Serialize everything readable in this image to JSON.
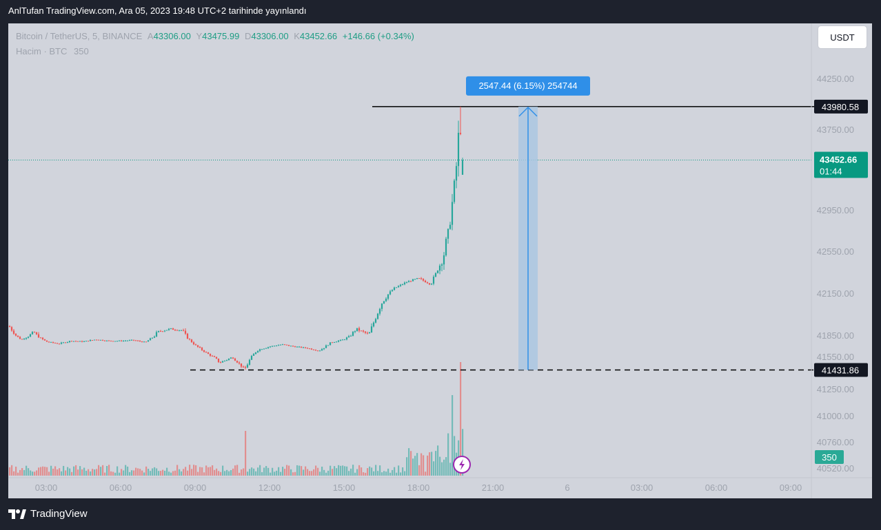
{
  "caption": "AnlTufan TradingView.com, Ara 05, 2023 19:48 UTC+2 tarihinde yayınlandı",
  "legend": {
    "symbol": "Bitcoin / TetherUS, 5, BINANCE",
    "open_label": "A",
    "open": "43306.00",
    "high_label": "Y",
    "high": "43475.99",
    "low_label": "D",
    "low": "43306.00",
    "close_label": "K",
    "close": "43452.66",
    "change": "+146.66 (+0.34%)",
    "volume_label": "Hacim · BTC",
    "volume_value": "350"
  },
  "currency_button": "USDT",
  "footer_brand": "TradingView",
  "colors": {
    "up": "#26a69a",
    "down": "#ef5350",
    "measure": "#2f8fe8",
    "measure_fill": "#a9c6e2",
    "price_badge": "#089981"
  },
  "chart_data": {
    "type": "candlestick",
    "symbol": "Bitcoin / TetherUS",
    "timeframe": "5",
    "exchange": "BINANCE",
    "y_axis": {
      "ticks": [
        44250.0,
        43750.0,
        42950.0,
        42550.0,
        42150.0,
        41850.0,
        41550.0,
        41250.0,
        41000.0,
        40760.0,
        40520.0
      ]
    },
    "x_axis": {
      "ticks": [
        "03:00",
        "06:00",
        "09:00",
        "12:00",
        "15:00",
        "18:00",
        "21:00",
        "6",
        "03:00",
        "06:00",
        "09:00"
      ]
    },
    "current_price": {
      "label": "43452.66",
      "timer": "01:44"
    },
    "horizontal_levels": [
      {
        "label": "43980.58",
        "style": "solid"
      },
      {
        "label": "41431.86",
        "style": "dashed"
      }
    ],
    "measure": {
      "label": "2547.44 (6.15%) 254744"
    },
    "volume_badge": "350",
    "price_path": [
      {
        "time": "01:30",
        "price": 41920
      },
      {
        "time": "02:00",
        "price": 41800
      },
      {
        "time": "02:30",
        "price": 41880
      },
      {
        "time": "03:00",
        "price": 41770
      },
      {
        "time": "03:30",
        "price": 41740
      },
      {
        "time": "04:00",
        "price": 41780
      },
      {
        "time": "04:30",
        "price": 41770
      },
      {
        "time": "05:00",
        "price": 41800
      },
      {
        "time": "05:30",
        "price": 41780
      },
      {
        "time": "06:00",
        "price": 41780
      },
      {
        "time": "06:30",
        "price": 41790
      },
      {
        "time": "07:00",
        "price": 41760
      },
      {
        "time": "07:30",
        "price": 41880
      },
      {
        "time": "08:00",
        "price": 41900
      },
      {
        "time": "08:30",
        "price": 41890
      },
      {
        "time": "09:00",
        "price": 41720
      },
      {
        "time": "09:30",
        "price": 41600
      },
      {
        "time": "10:00",
        "price": 41500
      },
      {
        "time": "10:30",
        "price": 41550
      },
      {
        "time": "11:00",
        "price": 41440
      },
      {
        "time": "11:30",
        "price": 41650
      },
      {
        "time": "12:00",
        "price": 41700
      },
      {
        "time": "12:30",
        "price": 41730
      },
      {
        "time": "13:00",
        "price": 41700
      },
      {
        "time": "13:30",
        "price": 41680
      },
      {
        "time": "14:00",
        "price": 41640
      },
      {
        "time": "14:30",
        "price": 41760
      },
      {
        "time": "15:00",
        "price": 41800
      },
      {
        "time": "15:30",
        "price": 41900
      },
      {
        "time": "16:00",
        "price": 41860
      },
      {
        "time": "16:30",
        "price": 42080
      },
      {
        "time": "17:00",
        "price": 42200
      },
      {
        "time": "17:30",
        "price": 42260
      },
      {
        "time": "18:00",
        "price": 42300
      },
      {
        "time": "18:30",
        "price": 42240
      },
      {
        "time": "19:00",
        "price": 42500
      },
      {
        "time": "19:15",
        "price": 42800
      },
      {
        "time": "19:30",
        "price": 43300
      },
      {
        "time": "19:40",
        "price": 43850
      },
      {
        "time": "19:45",
        "price": 43500
      },
      {
        "time": "19:48",
        "price": 43452.66
      }
    ]
  }
}
